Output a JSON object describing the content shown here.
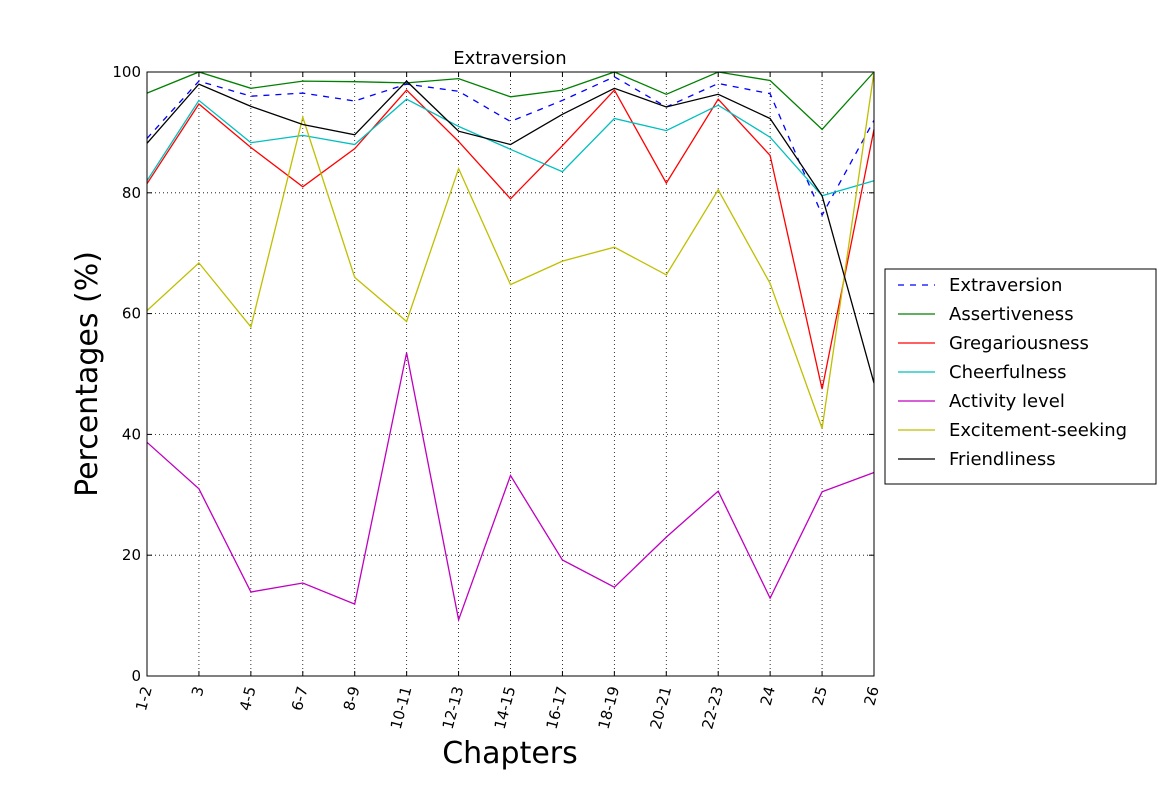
{
  "chart_data": {
    "type": "line",
    "title": "Extraversion",
    "xlabel": "Chapters",
    "ylabel": "Percentages (%)",
    "ylim": [
      0,
      100
    ],
    "yticks": [
      "0",
      "20",
      "40",
      "60",
      "80",
      "100"
    ],
    "grid": true,
    "legend_position": "right",
    "categories": [
      "1-2",
      "3",
      "4-5",
      "6-7",
      "8-9",
      "10-11",
      "12-13",
      "14-15",
      "16-17",
      "18-19",
      "20-21",
      "22-23",
      "24",
      "25",
      "26"
    ],
    "series": [
      {
        "name": "Extraversion",
        "color": "#0000ff",
        "dash": true,
        "values": [
          89,
          98.5,
          96,
          96.5,
          95.2,
          98,
          96.8,
          91.8,
          95.3,
          99.2,
          94.2,
          98.1,
          96.4,
          76.3,
          92
        ]
      },
      {
        "name": "Assertiveness",
        "color": "#008000",
        "values": [
          96.5,
          100,
          97.3,
          98.5,
          98.4,
          98.2,
          98.9,
          95.9,
          97,
          100,
          96.3,
          100,
          98.6,
          90.5,
          100
        ]
      },
      {
        "name": "Gregariousness",
        "color": "#ff0000",
        "values": [
          81.5,
          94.7,
          87.5,
          81,
          87.3,
          97,
          88.5,
          79,
          87.8,
          97,
          81.6,
          95.5,
          86.2,
          47.5,
          90.5
        ]
      },
      {
        "name": "Cheerfulness",
        "color": "#00bfbf",
        "values": [
          82,
          95.3,
          88.3,
          89.5,
          88,
          95.5,
          91,
          87.2,
          83.5,
          92.3,
          90.3,
          94.5,
          89.2,
          79.5,
          82
        ]
      },
      {
        "name": "Activity level",
        "color": "#bf00bf",
        "values": [
          38.7,
          31,
          13.9,
          15.4,
          11.9,
          53.5,
          9.3,
          33.2,
          19.2,
          14.7,
          23,
          30.6,
          12.9,
          30.5,
          33.7
        ]
      },
      {
        "name": "Excitement-seeking",
        "color": "#bfbf00",
        "values": [
          60.5,
          68.4,
          57.8,
          92.5,
          66,
          58.7,
          84,
          64.8,
          68.7,
          71,
          66.4,
          80.5,
          65,
          41,
          100
        ]
      },
      {
        "name": "Friendliness",
        "color": "#000000",
        "values": [
          88.2,
          98,
          94.3,
          91.3,
          89.6,
          98.5,
          90.2,
          88,
          93,
          97.3,
          94.2,
          96.3,
          92.3,
          79.5,
          48.5
        ]
      }
    ]
  }
}
